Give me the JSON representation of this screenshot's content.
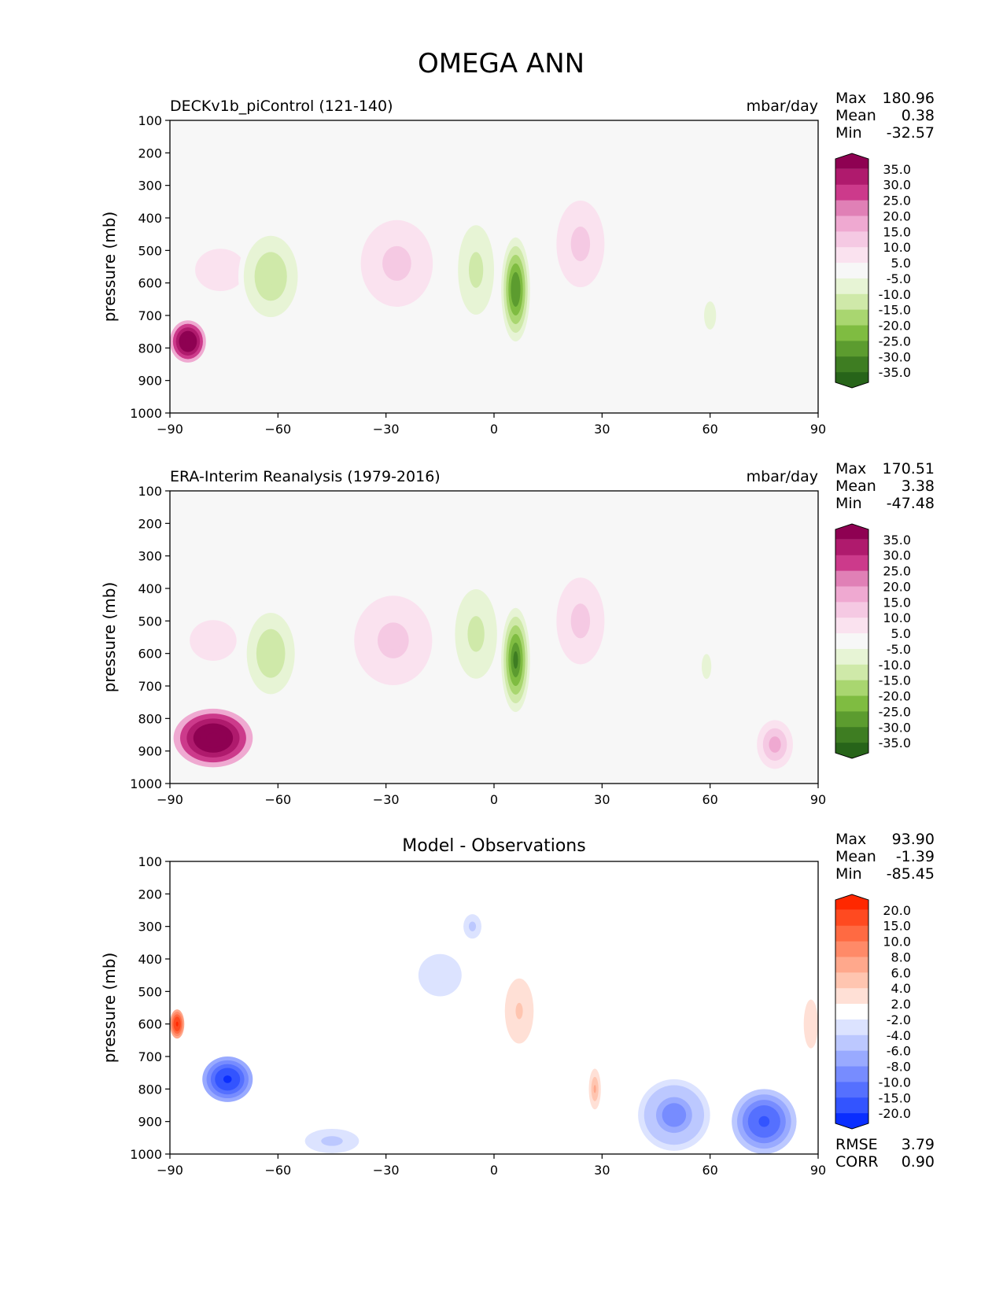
{
  "title": "OMEGA ANN",
  "chart_data": [
    {
      "type": "heatmap",
      "title_left": "DECKv1b_piControl (121-140)",
      "units": "mbar/day",
      "ylabel": "pressure (mb)",
      "xlim": [
        -90,
        90
      ],
      "ylim": [
        1000,
        100
      ],
      "xticks": [
        "−90",
        "−60",
        "−30",
        "0",
        "30",
        "60",
        "90"
      ],
      "yticks": [
        "100",
        "200",
        "300",
        "400",
        "500",
        "600",
        "700",
        "800",
        "900",
        "1000"
      ],
      "stats": [
        {
          "label": "Max",
          "value": "180.96"
        },
        {
          "label": "Mean",
          "value": "0.38"
        },
        {
          "label": "Min",
          "value": "-32.57"
        }
      ],
      "colorbar": {
        "labels": [
          "35.0",
          "30.0",
          "25.0",
          "20.0",
          "15.0",
          "10.0",
          "5.0",
          "-5.0",
          "-10.0",
          "-15.0",
          "-20.0",
          "-25.0",
          "-30.0",
          "-35.0"
        ],
        "colors": [
          "#8e0152",
          "#af1a6d",
          "#cc3a8b",
          "#e080b6",
          "#efa9d1",
          "#f5c9e3",
          "#fae2ef",
          "#f7f7f7",
          "#e7f4d5",
          "#cfe9a9",
          "#a9d670",
          "#7fbc41",
          "#5c9c2f",
          "#3e7d22",
          "#276419"
        ]
      },
      "features": [
        {
          "kind": "pos",
          "lat": -85,
          "plev": 780,
          "wlat": 5,
          "wplev": 130,
          "value": 60
        },
        {
          "kind": "pos",
          "lat": -76,
          "plev": 560,
          "wlat": 14,
          "wplev": 260,
          "value": 8
        },
        {
          "kind": "neg",
          "lat": -62,
          "plev": 580,
          "wlat": 9,
          "wplev": 300,
          "value": -14
        },
        {
          "kind": "pos",
          "lat": -27,
          "plev": 540,
          "wlat": 12,
          "wplev": 320,
          "value": 12
        },
        {
          "kind": "neg",
          "lat": -5,
          "plev": 560,
          "wlat": 6,
          "wplev": 330,
          "value": -12
        },
        {
          "kind": "neg",
          "lat": 6,
          "plev": 620,
          "wlat": 4,
          "wplev": 320,
          "value": -30
        },
        {
          "kind": "pos",
          "lat": 24,
          "plev": 480,
          "wlat": 8,
          "wplev": 320,
          "value": 13
        },
        {
          "kind": "neg",
          "lat": 60,
          "plev": 700,
          "wlat": 5,
          "wplev": 260,
          "value": -6
        }
      ]
    },
    {
      "type": "heatmap",
      "title_left": "ERA-Interim Reanalysis (1979-2016)",
      "units": "mbar/day",
      "ylabel": "pressure (mb)",
      "xlim": [
        -90,
        90
      ],
      "ylim": [
        1000,
        100
      ],
      "xticks": [
        "−90",
        "−60",
        "−30",
        "0",
        "30",
        "60",
        "90"
      ],
      "yticks": [
        "100",
        "200",
        "300",
        "400",
        "500",
        "600",
        "700",
        "800",
        "900",
        "1000"
      ],
      "stats": [
        {
          "label": "Max",
          "value": "170.51"
        },
        {
          "label": "Mean",
          "value": "3.38"
        },
        {
          "label": "Min",
          "value": "-47.48"
        }
      ],
      "colorbar": {
        "labels": [
          "35.0",
          "30.0",
          "25.0",
          "20.0",
          "15.0",
          "10.0",
          "5.0",
          "-5.0",
          "-10.0",
          "-15.0",
          "-20.0",
          "-25.0",
          "-30.0",
          "-35.0"
        ],
        "colors": [
          "#8e0152",
          "#af1a6d",
          "#cc3a8b",
          "#e080b6",
          "#efa9d1",
          "#f5c9e3",
          "#fae2ef",
          "#f7f7f7",
          "#e7f4d5",
          "#cfe9a9",
          "#a9d670",
          "#7fbc41",
          "#5c9c2f",
          "#3e7d22",
          "#276419"
        ]
      },
      "features": [
        {
          "kind": "pos",
          "lat": -78,
          "plev": 860,
          "wlat": 11,
          "wplev": 180,
          "value": 60
        },
        {
          "kind": "pos",
          "lat": -78,
          "plev": 560,
          "wlat": 13,
          "wplev": 250,
          "value": 8
        },
        {
          "kind": "neg",
          "lat": -62,
          "plev": 600,
          "wlat": 8,
          "wplev": 300,
          "value": -14
        },
        {
          "kind": "pos",
          "lat": -28,
          "plev": 560,
          "wlat": 13,
          "wplev": 330,
          "value": 12
        },
        {
          "kind": "neg",
          "lat": -5,
          "plev": 540,
          "wlat": 7,
          "wplev": 330,
          "value": -12
        },
        {
          "kind": "neg",
          "lat": 6,
          "plev": 620,
          "wlat": 4,
          "wplev": 320,
          "value": -34
        },
        {
          "kind": "pos",
          "lat": 24,
          "plev": 500,
          "wlat": 8,
          "wplev": 320,
          "value": 13
        },
        {
          "kind": "neg",
          "lat": 59,
          "plev": 640,
          "wlat": 4,
          "wplev": 230,
          "value": -6
        },
        {
          "kind": "pos",
          "lat": 78,
          "plev": 880,
          "wlat": 5,
          "wplev": 150,
          "value": 18
        }
      ]
    },
    {
      "type": "heatmap",
      "title_center": "Model - Observations",
      "ylabel": "pressure (mb)",
      "xlim": [
        -90,
        90
      ],
      "ylim": [
        1000,
        100
      ],
      "xticks": [
        "−90",
        "−60",
        "−30",
        "0",
        "30",
        "60",
        "90"
      ],
      "yticks": [
        "100",
        "200",
        "300",
        "400",
        "500",
        "600",
        "700",
        "800",
        "900",
        "1000"
      ],
      "stats": [
        {
          "label": "Max",
          "value": "93.90"
        },
        {
          "label": "Mean",
          "value": "-1.39"
        },
        {
          "label": "Min",
          "value": "-85.45"
        }
      ],
      "extra_stats": [
        {
          "label": "RMSE",
          "value": "3.79"
        },
        {
          "label": "CORR",
          "value": "0.90"
        }
      ],
      "colorbar": {
        "labels": [
          "20.0",
          "15.0",
          "10.0",
          "8.0",
          "6.0",
          "4.0",
          "2.0",
          "-2.0",
          "-4.0",
          "-6.0",
          "-8.0",
          "-10.0",
          "-15.0",
          "-20.0"
        ],
        "colors": [
          "#ff2800",
          "#ff4a20",
          "#ff6a42",
          "#ff8a68",
          "#ffa88c",
          "#ffc5b0",
          "#ffe0d6",
          "#ffffff",
          "#dce3ff",
          "#bcc8ff",
          "#99aaff",
          "#778cff",
          "#5570ff",
          "#3354ff",
          "#0a2eff"
        ]
      },
      "features": [
        {
          "kind": "neg",
          "lat": -74,
          "plev": 770,
          "wlat": 7,
          "wplev": 140,
          "value": -22
        },
        {
          "kind": "pos",
          "lat": -88,
          "plev": 600,
          "wlat": 2,
          "wplev": 90,
          "value": 22
        },
        {
          "kind": "neg",
          "lat": -45,
          "plev": 960,
          "wlat": 9,
          "wplev": 90,
          "value": -5
        },
        {
          "kind": "neg",
          "lat": -15,
          "plev": 450,
          "wlat": 12,
          "wplev": 260,
          "value": -3
        },
        {
          "kind": "neg",
          "lat": -6,
          "plev": 300,
          "wlat": 3,
          "wplev": 90,
          "value": -5
        },
        {
          "kind": "pos",
          "lat": 7,
          "plev": 560,
          "wlat": 6,
          "wplev": 300,
          "value": 4
        },
        {
          "kind": "pos",
          "lat": 28,
          "plev": 800,
          "wlat": 2,
          "wplev": 150,
          "value": 6
        },
        {
          "kind": "neg",
          "lat": 50,
          "plev": 880,
          "wlat": 10,
          "wplev": 220,
          "value": -10
        },
        {
          "kind": "neg",
          "lat": 75,
          "plev": 900,
          "wlat": 9,
          "wplev": 200,
          "value": -16
        },
        {
          "kind": "pos",
          "lat": 88,
          "plev": 600,
          "wlat": 4,
          "wplev": 300,
          "value": 3
        }
      ]
    }
  ]
}
